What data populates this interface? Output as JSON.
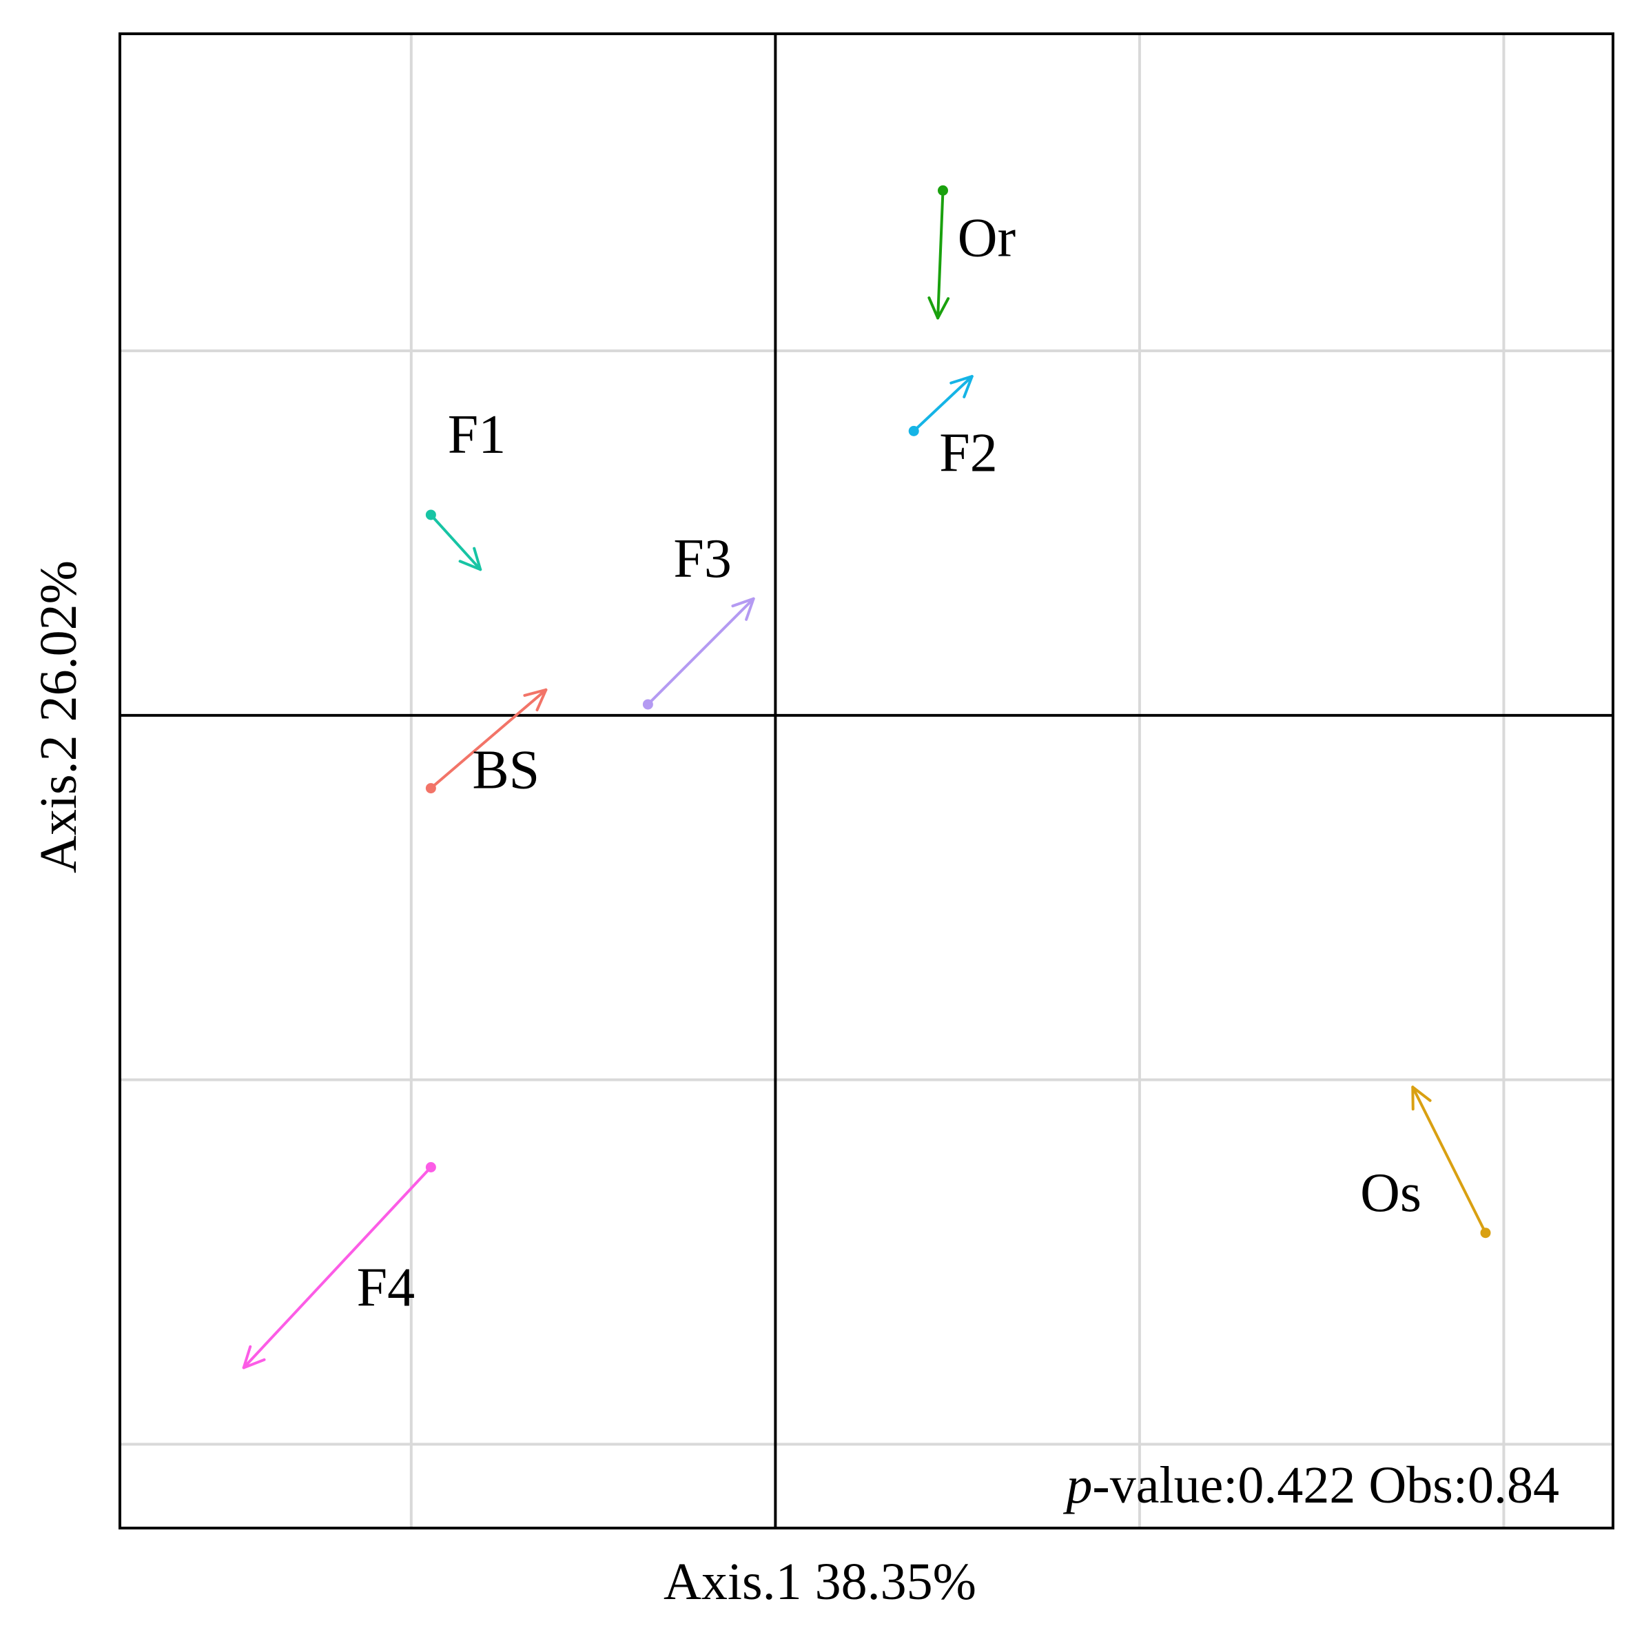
{
  "chart_data": {
    "type": "scatter",
    "subtype": "procrustes-arrows",
    "xlabel": "Axis.1 38.35%",
    "ylabel": "Axis.2 26.02%",
    "xlim": [
      -0.9,
      1.15
    ],
    "ylim": [
      -1.115,
      0.935
    ],
    "grid": true,
    "grid_x": [
      -0.5,
      0.5,
      1.0
    ],
    "grid_y": [
      0.5,
      -0.5,
      -1.0
    ],
    "zero_lines": true,
    "annotation": {
      "italic": "p",
      "text": "-value:0.422 Obs:0.84"
    },
    "arrows": [
      {
        "name": "Or",
        "color": "#1aa10e",
        "x0": 0.23,
        "y0": 0.72,
        "x1": 0.223,
        "y1": 0.545,
        "label_x": 0.29,
        "label_y": 0.63
      },
      {
        "name": "F2",
        "color": "#15b4e6",
        "x0": 0.19,
        "y0": 0.39,
        "x1": 0.27,
        "y1": 0.465,
        "label_x": 0.265,
        "label_y": 0.335
      },
      {
        "name": "F1",
        "color": "#17c4a4",
        "x0": -0.473,
        "y0": 0.275,
        "x1": -0.405,
        "y1": 0.2,
        "label_x": -0.41,
        "label_y": 0.36
      },
      {
        "name": "F3",
        "color": "#b49af2",
        "x0": -0.175,
        "y0": 0.015,
        "x1": -0.03,
        "y1": 0.16,
        "label_x": -0.1,
        "label_y": 0.19
      },
      {
        "name": "BS",
        "color": "#f27468",
        "x0": -0.473,
        "y0": -0.1,
        "x1": -0.315,
        "y1": 0.035,
        "label_x": -0.37,
        "label_y": -0.1
      },
      {
        "name": "F4",
        "color": "#fc5ce6",
        "x0": -0.473,
        "y0": -0.62,
        "x1": -0.73,
        "y1": -0.895,
        "label_x": -0.535,
        "label_y": -0.81
      },
      {
        "name": "Os",
        "color": "#d9a012",
        "x0": 0.975,
        "y0": -0.71,
        "x1": 0.875,
        "y1": -0.51,
        "label_x": 0.845,
        "label_y": -0.68
      }
    ]
  }
}
